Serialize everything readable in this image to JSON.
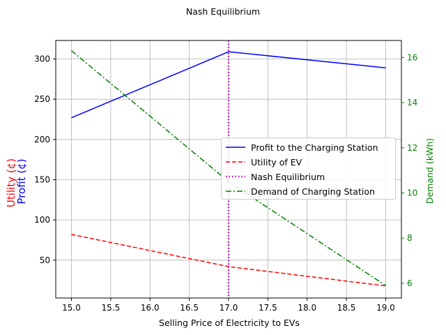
{
  "chart_data": {
    "type": "line",
    "title": "Nash Equilibrium",
    "xlabel": "Selling Price of Electricity to EVs",
    "ylabel_left": [
      "Utility (¢)",
      "Profit (¢)"
    ],
    "ylabel_right": "Demand (kWh)",
    "x": [
      15.0,
      17.0,
      19.0
    ],
    "xlim": [
      14.8,
      19.2
    ],
    "ylim_left": [
      3,
      323
    ],
    "ylim_right": [
      5.35,
      16.75
    ],
    "x_ticks": [
      15.0,
      15.5,
      16.0,
      16.5,
      17.0,
      17.5,
      18.0,
      18.5,
      19.0
    ],
    "x_tick_labels": [
      "15.0",
      "15.5",
      "16.0",
      "16.5",
      "17.0",
      "17.5",
      "18.0",
      "18.5",
      "19.0"
    ],
    "y_ticks_left": [
      50,
      100,
      150,
      200,
      250,
      300
    ],
    "y_tick_labels_left": [
      "50",
      "100",
      "150",
      "200",
      "250",
      "300"
    ],
    "y_ticks_right": [
      6,
      8,
      10,
      12,
      14,
      16
    ],
    "y_tick_labels_right": [
      "6",
      "8",
      "10",
      "12",
      "14",
      "16"
    ],
    "grid": true,
    "legend_position": "center-right",
    "series": [
      {
        "name": "Profit to the Charging Station",
        "axis": "left",
        "values": [
          227,
          309,
          289
        ],
        "color": "#0000ff",
        "style": "solid"
      },
      {
        "name": "Utility of EV",
        "axis": "left",
        "values": [
          82,
          42,
          18
        ],
        "color": "#ff0000",
        "style": "dashed"
      },
      {
        "name": "Demand of Charging Station",
        "axis": "right",
        "values": [
          16.3,
          10.5,
          5.9
        ],
        "color": "#008000",
        "style": "dashdot"
      }
    ],
    "vline": {
      "name": "Nash Equilibrium",
      "x": 17.0,
      "color": "#bf00bf",
      "style": "dotted"
    },
    "colors": {
      "left_label_utility": "#ff0000",
      "left_label_profit": "#0000ff",
      "right_axis": "#008000"
    }
  }
}
